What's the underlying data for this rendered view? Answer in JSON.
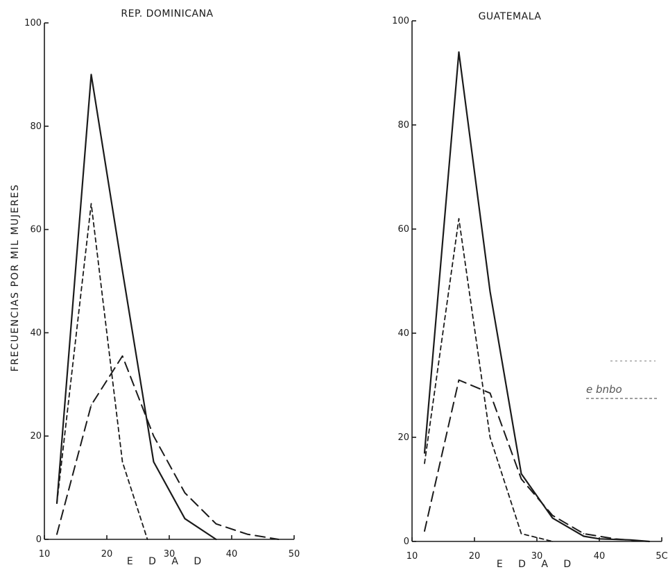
{
  "ylabel": "FRECUENCIAS POR MIL MUJERES",
  "stamp_text": "e bnbo",
  "chart_data": [
    {
      "type": "line",
      "title": "REP. DOMINICANA",
      "xlabel": "E D A D",
      "xlim": [
        10,
        50
      ],
      "ylim": [
        0,
        100
      ],
      "xticks": [
        10,
        20,
        30,
        40,
        50
      ],
      "yticks": [
        0,
        20,
        40,
        60,
        80,
        100
      ],
      "grid": false,
      "series": [
        {
          "style": "solid",
          "x": [
            12,
            17.5,
            22.5,
            27.5,
            32.5,
            37.5
          ],
          "y": [
            7,
            90,
            52,
            15,
            4,
            0
          ]
        },
        {
          "style": "short-dash",
          "x": [
            12,
            17.5,
            22.5,
            26.5
          ],
          "y": [
            7,
            65,
            15,
            0
          ]
        },
        {
          "style": "long-dash",
          "x": [
            12,
            17.5,
            22.5,
            27.5,
            32.5,
            37.5,
            42.5,
            47.5
          ],
          "y": [
            1,
            26,
            35.5,
            20,
            9,
            3,
            1,
            0
          ]
        }
      ]
    },
    {
      "type": "line",
      "title": "GUATEMALA",
      "xlabel": "E D A D",
      "xlim": [
        10,
        50
      ],
      "ylim": [
        0,
        100
      ],
      "xticks": [
        10,
        20,
        30,
        40,
        "5C"
      ],
      "yticks": [
        0,
        20,
        40,
        60,
        80,
        100
      ],
      "grid": false,
      "series": [
        {
          "style": "solid",
          "x": [
            12,
            17.5,
            22.5,
            27.5,
            32.5,
            37.5,
            40,
            45,
            48
          ],
          "y": [
            17,
            94,
            48,
            13,
            4.5,
            1,
            0.5,
            0.3,
            0
          ]
        },
        {
          "style": "short-dash",
          "x": [
            12,
            17.5,
            22.5,
            27.5,
            32.5
          ],
          "y": [
            15,
            62,
            20,
            1.5,
            0
          ]
        },
        {
          "style": "long-dash",
          "x": [
            12,
            17.5,
            22.5,
            27.5,
            32.5,
            37.5,
            42.5,
            47.5
          ],
          "y": [
            2,
            31,
            28.5,
            12,
            5,
            1.5,
            0.5,
            0
          ]
        }
      ]
    }
  ]
}
